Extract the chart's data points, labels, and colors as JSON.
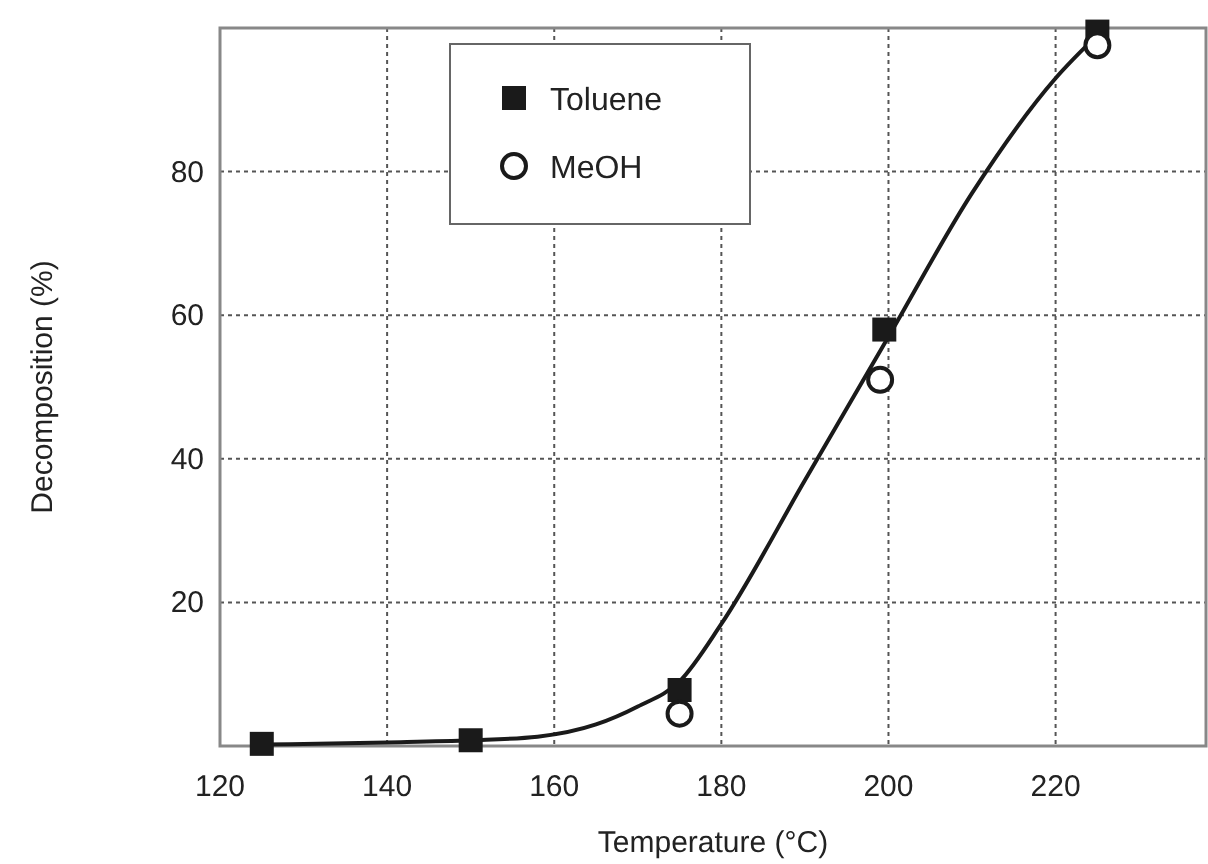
{
  "chart_data": {
    "type": "scatter",
    "xlabel": "Temperature (°C)",
    "ylabel": "Decomposition (%)",
    "xlim": [
      120,
      238
    ],
    "xticks": [
      120,
      140,
      160,
      180,
      200,
      220
    ],
    "ylim": [
      0,
      100
    ],
    "yticks": [
      {
        "value": 0,
        "label": null
      },
      20,
      40,
      60,
      80,
      {
        "value": 100,
        "label": null
      }
    ],
    "grid": true,
    "legend": "top",
    "series": [
      {
        "type": "line",
        "color": "#1a1a1a",
        "marker": "none",
        "x": [
          125,
          140,
          150,
          158,
          165,
          170,
          175,
          180,
          190,
          200,
          210,
          220,
          225
        ],
        "values": [
          0.2,
          0.5,
          0.8,
          1.3,
          3,
          5.5,
          9,
          17,
          37,
          57,
          77,
          93,
          99
        ]
      },
      {
        "name": "Toluene",
        "color": "#1a1a1a",
        "marker": "square",
        "x": [
          125,
          150,
          175,
          199.5,
          225
        ],
        "values": [
          0.3,
          0.8,
          7.8,
          58,
          99.5
        ]
      },
      {
        "name": "MeOH",
        "color": "#1a1a1a",
        "marker": "circle",
        "x": [
          175,
          199,
          225
        ],
        "values": [
          4.5,
          51,
          97.6
        ]
      }
    ]
  }
}
